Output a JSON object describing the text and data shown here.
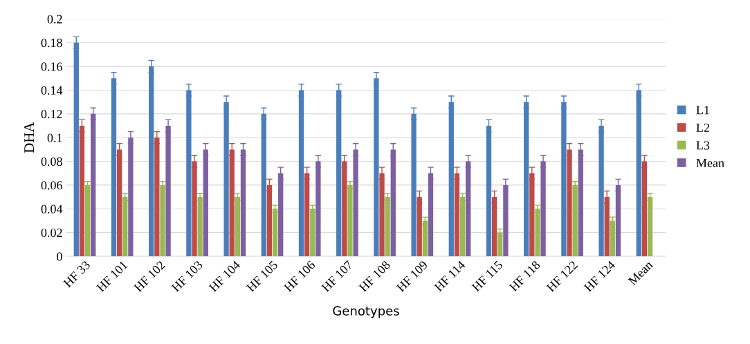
{
  "chart_data": {
    "type": "bar",
    "xlabel": "Genotypes",
    "ylabel": "DHA",
    "categories": [
      "HF 33",
      "HF 101",
      "HF 102",
      "HF 103",
      "HF 104",
      "HF 105",
      "HF 106",
      "HF 107",
      "HF 108",
      "HF 109",
      "HF 114",
      "HF 115",
      "HF 118",
      "HF 122",
      "HF 124",
      "Mean"
    ],
    "series": [
      {
        "name": "L1",
        "color": "#4a7ebb",
        "values": [
          0.18,
          0.15,
          0.16,
          0.14,
          0.13,
          0.12,
          0.14,
          0.14,
          0.15,
          0.12,
          0.13,
          0.11,
          0.13,
          0.13,
          0.11,
          0.14
        ],
        "errors": [
          0.005,
          0.005,
          0.005,
          0.005,
          0.005,
          0.005,
          0.005,
          0.005,
          0.005,
          0.005,
          0.005,
          0.005,
          0.005,
          0.005,
          0.005,
          0.005
        ]
      },
      {
        "name": "L2",
        "color": "#be4b48",
        "values": [
          0.11,
          0.09,
          0.1,
          0.08,
          0.09,
          0.06,
          0.07,
          0.08,
          0.07,
          0.05,
          0.07,
          0.05,
          0.07,
          0.09,
          0.05,
          0.08
        ],
        "errors": [
          0.005,
          0.005,
          0.005,
          0.005,
          0.005,
          0.005,
          0.005,
          0.005,
          0.005,
          0.005,
          0.005,
          0.005,
          0.005,
          0.005,
          0.005,
          0.005
        ]
      },
      {
        "name": "L3",
        "color": "#98b954",
        "values": [
          0.06,
          0.05,
          0.06,
          0.05,
          0.05,
          0.04,
          0.04,
          0.06,
          0.05,
          0.03,
          0.05,
          0.02,
          0.04,
          0.06,
          0.03,
          0.05
        ],
        "errors": [
          0.003,
          0.003,
          0.003,
          0.003,
          0.003,
          0.003,
          0.003,
          0.003,
          0.003,
          0.003,
          0.003,
          0.003,
          0.003,
          0.003,
          0.003,
          0.003
        ]
      },
      {
        "name": "Mean",
        "color": "#7d60a0",
        "values": [
          0.12,
          0.1,
          0.11,
          0.09,
          0.09,
          0.07,
          0.08,
          0.09,
          0.09,
          0.07,
          0.08,
          0.06,
          0.08,
          0.09,
          0.06,
          null
        ],
        "errors": [
          0.005,
          0.005,
          0.005,
          0.005,
          0.005,
          0.005,
          0.005,
          0.005,
          0.005,
          0.005,
          0.005,
          0.005,
          0.005,
          0.005,
          0.005,
          null
        ]
      }
    ],
    "ylim": [
      0,
      0.2
    ],
    "yticks": [
      0,
      0.02,
      0.04,
      0.06,
      0.08,
      0.1,
      0.12,
      0.14,
      0.16,
      0.18,
      0.2
    ],
    "grid": "y",
    "legend": "right"
  }
}
